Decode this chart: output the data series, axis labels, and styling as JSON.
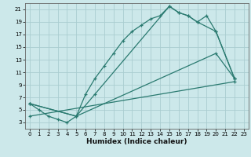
{
  "xlabel": "Humidex (Indice chaleur)",
  "bg_color": "#cce8ea",
  "grid_color": "#aacdd0",
  "line_color": "#2a7a70",
  "xlim": [
    -0.5,
    23.5
  ],
  "ylim": [
    2,
    22
  ],
  "xticks": [
    0,
    1,
    2,
    3,
    4,
    5,
    6,
    7,
    8,
    9,
    10,
    11,
    12,
    13,
    14,
    15,
    16,
    17,
    18,
    19,
    20,
    21,
    22,
    23
  ],
  "yticks": [
    3,
    5,
    7,
    9,
    11,
    13,
    15,
    17,
    19,
    21
  ],
  "line1_x": [
    0,
    1,
    2,
    3,
    4,
    5,
    6,
    7,
    8,
    9,
    10,
    11,
    12,
    13,
    14,
    15,
    16,
    17,
    18,
    19,
    20,
    22
  ],
  "line1_y": [
    6,
    5,
    4,
    3.5,
    3,
    4,
    7.5,
    10,
    12,
    14,
    16,
    17.5,
    18.5,
    19.5,
    20,
    21.5,
    20.5,
    20,
    19,
    20,
    17.5,
    10
  ],
  "line2_x": [
    0,
    5,
    7,
    15,
    16,
    17,
    18,
    20,
    22
  ],
  "line2_y": [
    6,
    4,
    7.5,
    21.5,
    20.5,
    20,
    19,
    17.5,
    10
  ],
  "line3_x": [
    0,
    5,
    20,
    22
  ],
  "line3_y": [
    6,
    4,
    14,
    10
  ],
  "line4_x": [
    0,
    22
  ],
  "line4_y": [
    4,
    9.5
  ],
  "xlabel_fontsize": 6.5,
  "tick_fontsize": 5.0
}
